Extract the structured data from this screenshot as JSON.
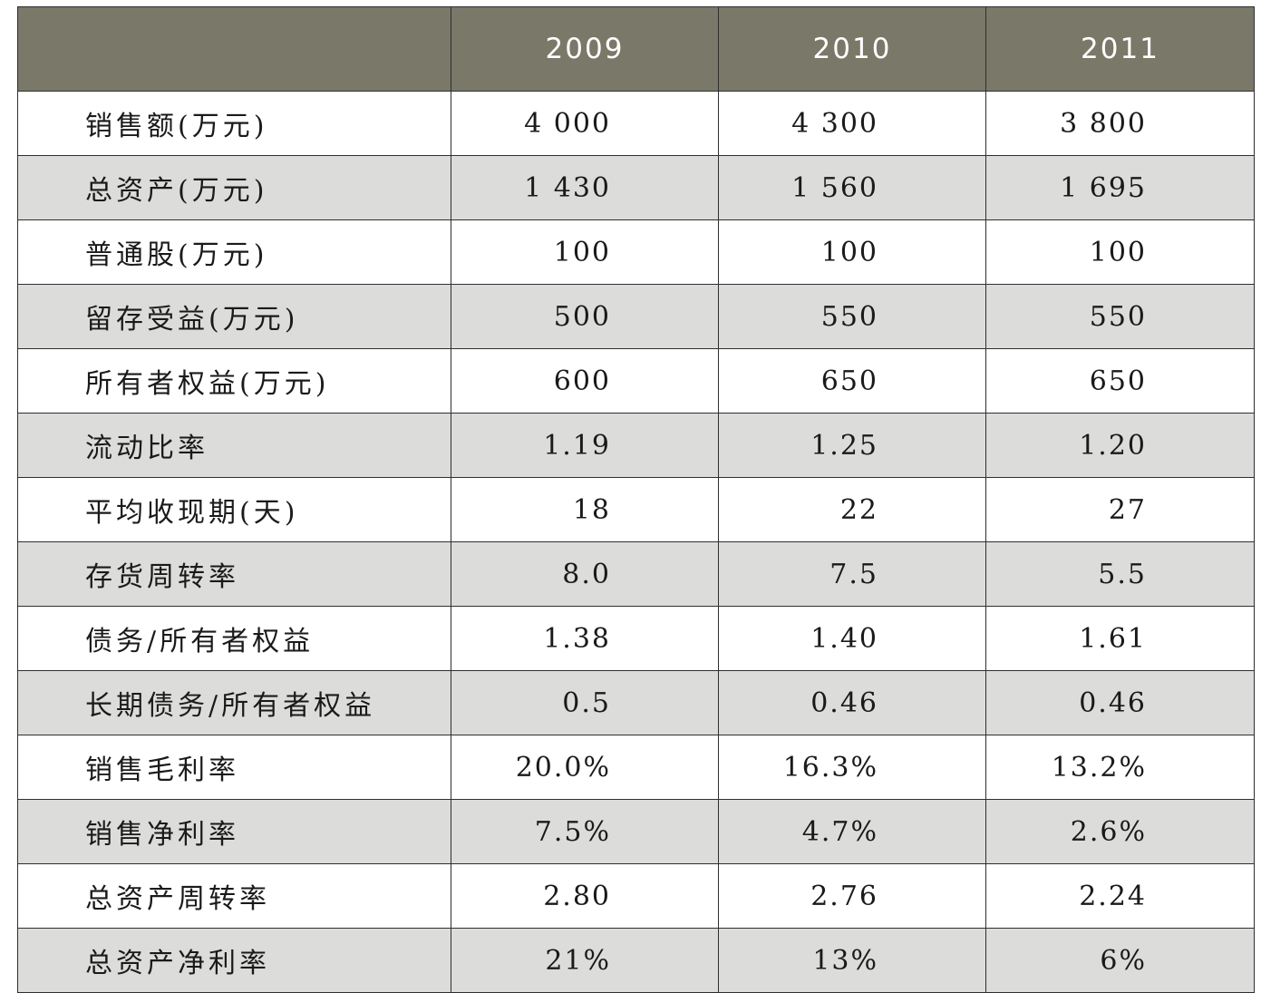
{
  "header": {
    "corner": "",
    "years": [
      "2009",
      "2010",
      "2011"
    ]
  },
  "rows": [
    {
      "label": "销售额(万元)",
      "values": [
        "4 000",
        "4 300",
        "3 800"
      ]
    },
    {
      "label": "总资产(万元)",
      "values": [
        "1 430",
        "1 560",
        "1 695"
      ]
    },
    {
      "label": "普通股(万元)",
      "values": [
        "100",
        "100",
        "100"
      ]
    },
    {
      "label": "留存受益(万元)",
      "values": [
        "500",
        "550",
        "550"
      ]
    },
    {
      "label": "所有者权益(万元)",
      "values": [
        "600",
        "650",
        "650"
      ]
    },
    {
      "label": "流动比率",
      "values": [
        "1.19",
        "1.25",
        "1.20"
      ]
    },
    {
      "label": "平均收现期(天)",
      "values": [
        "18",
        "22",
        "27"
      ]
    },
    {
      "label": "存货周转率",
      "values": [
        "8.0",
        "7.5",
        "5.5"
      ]
    },
    {
      "label": "债务/所有者权益",
      "values": [
        "1.38",
        "1.40",
        "1.61"
      ]
    },
    {
      "label": "长期债务/所有者权益",
      "values": [
        "0.5",
        "0.46",
        "0.46"
      ]
    },
    {
      "label": "销售毛利率",
      "values": [
        "20.0%",
        "16.3%",
        "13.2%"
      ]
    },
    {
      "label": "销售净利率",
      "values": [
        "7.5%",
        "4.7%",
        "2.6%"
      ]
    },
    {
      "label": "总资产周转率",
      "values": [
        "2.80",
        "2.76",
        "2.24"
      ]
    },
    {
      "label": "总资产净利率",
      "values": [
        "21%",
        "13%",
        "6%"
      ]
    }
  ],
  "colors": {
    "header_bg": "#7a7868",
    "header_text": "#ffffff",
    "row_alt_bg": "#dcdcda",
    "row_bg": "#ffffff",
    "border": "#2f2f2f"
  }
}
